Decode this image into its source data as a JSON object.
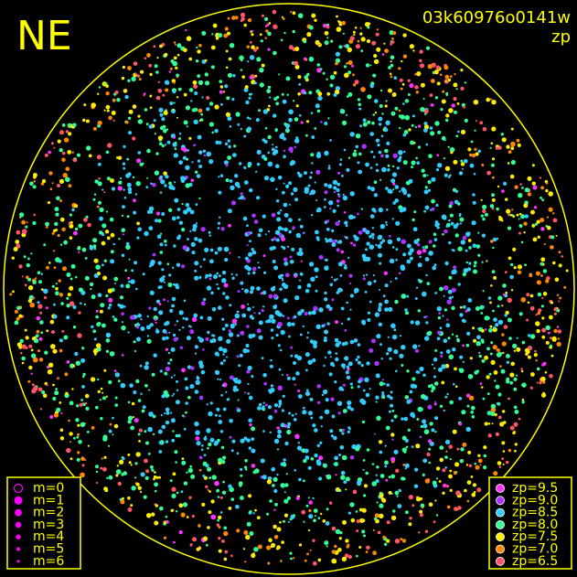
{
  "header": {
    "title": "NE",
    "frame_id": "03k60976o0141w",
    "color_key": "zp"
  },
  "legend_size": {
    "items": [
      "m=0",
      "m=1",
      "m=2",
      "m=3",
      "m=4",
      "m=5",
      "m=6"
    ],
    "color": "#ff00ff"
  },
  "legend_color": {
    "items": [
      {
        "label": "zp=9.5",
        "color": "#ff33ff"
      },
      {
        "label": "zp=9.0",
        "color": "#aa33ff"
      },
      {
        "label": "zp=8.5",
        "color": "#33ccff"
      },
      {
        "label": "zp=8.0",
        "color": "#33ff99"
      },
      {
        "label": "zp=7.5",
        "color": "#ffee00"
      },
      {
        "label": "zp=7.0",
        "color": "#ff8800"
      },
      {
        "label": "zp=6.5",
        "color": "#ff5566"
      }
    ]
  }
}
